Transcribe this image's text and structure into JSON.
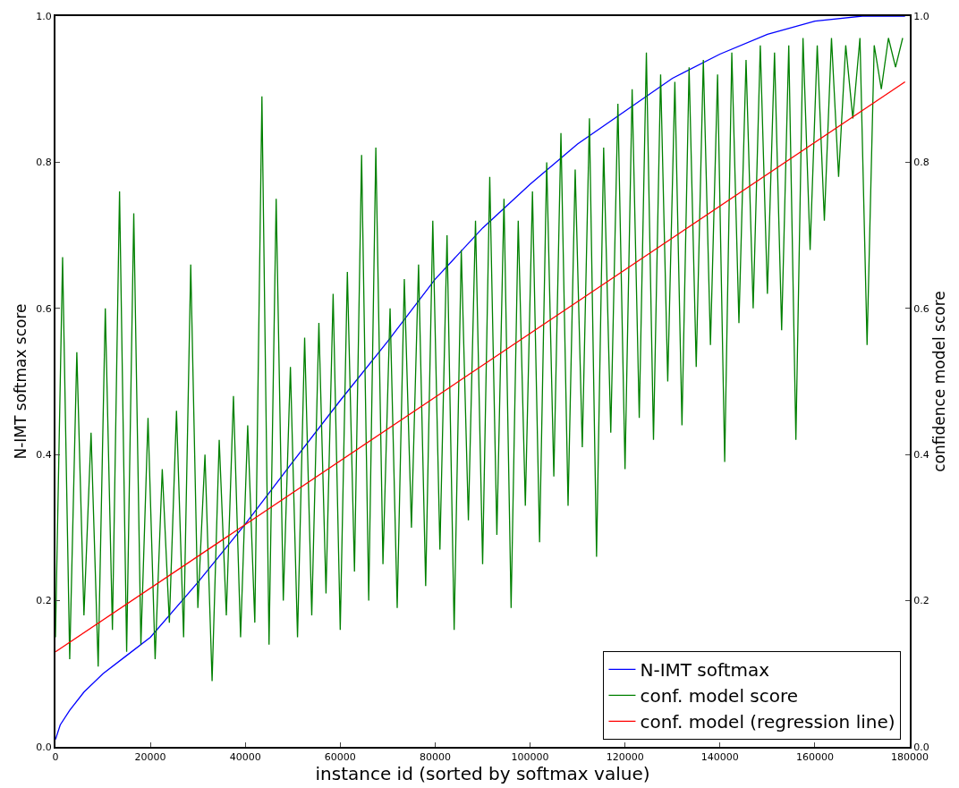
{
  "chart_data": {
    "type": "line",
    "xlabel": "instance id (sorted by softmax value)",
    "ylabel": "N-IMT softmax score",
    "y2label": "confidence model score",
    "xlim": [
      0,
      180000
    ],
    "xticks": [
      0,
      20000,
      40000,
      60000,
      80000,
      100000,
      120000,
      140000,
      160000,
      180000
    ],
    "ylim": [
      0,
      1
    ],
    "yticks": [
      {
        "value": 0,
        "label": "0.0"
      },
      {
        "value": 0.2,
        "label": "0.2"
      },
      {
        "value": 0.4,
        "label": "0.4"
      },
      {
        "value": 0.6,
        "label": "0.6"
      },
      {
        "value": 0.8,
        "label": "0.8"
      },
      {
        "value": 1,
        "label": "1.0"
      }
    ],
    "y2lim": [
      0,
      1
    ],
    "y2ticks": [
      {
        "value": 0,
        "label": "0.0"
      },
      {
        "value": 0.2,
        "label": "0.2"
      },
      {
        "value": 0.4,
        "label": "0.4"
      },
      {
        "value": 0.6,
        "label": "0.6"
      },
      {
        "value": 0.8,
        "label": "0.8"
      },
      {
        "value": 1,
        "label": "1.0"
      }
    ],
    "legend": "bottom right",
    "series": [
      {
        "name": "N-IMT softmax",
        "color": "#0000ff",
        "x": [
          0,
          1000,
          3000,
          6000,
          10000,
          15000,
          20000,
          30000,
          40000,
          50000,
          60000,
          70000,
          80000,
          90000,
          100000,
          110000,
          120000,
          130000,
          140000,
          150000,
          160000,
          170000,
          179000
        ],
        "values": [
          0.01,
          0.03,
          0.05,
          0.075,
          0.1,
          0.125,
          0.15,
          0.225,
          0.305,
          0.39,
          0.474,
          0.555,
          0.64,
          0.71,
          0.77,
          0.825,
          0.87,
          0.915,
          0.948,
          0.975,
          0.993,
          1.0,
          1.0
        ]
      },
      {
        "name": "conf. model score",
        "color": "#008000",
        "axis": "y2",
        "x": [
          0,
          1500,
          3000,
          4500,
          6000,
          7500,
          9000,
          10500,
          12000,
          13500,
          15000,
          16500,
          18000,
          19500,
          21000,
          22500,
          24000,
          25500,
          27000,
          28500,
          30000,
          31500,
          33000,
          34500,
          36000,
          37500,
          39000,
          40500,
          42000,
          43500,
          45000,
          46500,
          48000,
          49500,
          51000,
          52500,
          54000,
          55500,
          57000,
          58500,
          60000,
          61500,
          63000,
          64500,
          66000,
          67500,
          69000,
          70500,
          72000,
          73500,
          75000,
          76500,
          78000,
          79500,
          81000,
          82500,
          84000,
          85500,
          87000,
          88500,
          90000,
          91500,
          93000,
          94500,
          96000,
          97500,
          99000,
          100500,
          102000,
          103500,
          105000,
          106500,
          108000,
          109500,
          111000,
          112500,
          114000,
          115500,
          117000,
          118500,
          120000,
          121500,
          123000,
          124500,
          126000,
          127500,
          129000,
          130500,
          132000,
          133500,
          135000,
          136500,
          138000,
          139500,
          141000,
          142500,
          144000,
          145500,
          147000,
          148500,
          150000,
          151500,
          153000,
          154500,
          156000,
          157500,
          159000,
          160500,
          162000,
          163500,
          165000,
          166500,
          168000,
          169500,
          171000,
          172500,
          174000,
          175500,
          177000,
          178500
        ],
        "values": [
          0.15,
          0.67,
          0.12,
          0.54,
          0.18,
          0.43,
          0.11,
          0.6,
          0.16,
          0.76,
          0.13,
          0.73,
          0.14,
          0.45,
          0.12,
          0.38,
          0.17,
          0.46,
          0.15,
          0.66,
          0.19,
          0.4,
          0.09,
          0.42,
          0.18,
          0.48,
          0.15,
          0.44,
          0.17,
          0.89,
          0.14,
          0.75,
          0.2,
          0.52,
          0.15,
          0.56,
          0.18,
          0.58,
          0.21,
          0.62,
          0.16,
          0.65,
          0.24,
          0.81,
          0.2,
          0.82,
          0.25,
          0.6,
          0.19,
          0.64,
          0.3,
          0.66,
          0.22,
          0.72,
          0.27,
          0.7,
          0.16,
          0.68,
          0.31,
          0.72,
          0.25,
          0.78,
          0.29,
          0.75,
          0.19,
          0.72,
          0.33,
          0.76,
          0.28,
          0.8,
          0.37,
          0.84,
          0.33,
          0.79,
          0.41,
          0.86,
          0.26,
          0.82,
          0.43,
          0.88,
          0.38,
          0.9,
          0.45,
          0.95,
          0.42,
          0.92,
          0.5,
          0.91,
          0.44,
          0.93,
          0.52,
          0.94,
          0.55,
          0.92,
          0.39,
          0.95,
          0.58,
          0.94,
          0.6,
          0.96,
          0.62,
          0.95,
          0.57,
          0.96,
          0.42,
          0.97,
          0.68,
          0.96,
          0.72,
          0.97,
          0.78,
          0.96,
          0.86,
          0.97,
          0.55,
          0.96,
          0.9,
          0.97,
          0.93,
          0.97
        ]
      },
      {
        "name": "conf. model (regression line)",
        "color": "#ff0000",
        "axis": "y2",
        "x": [
          0,
          179000
        ],
        "values": [
          0.13,
          0.91
        ]
      }
    ]
  }
}
